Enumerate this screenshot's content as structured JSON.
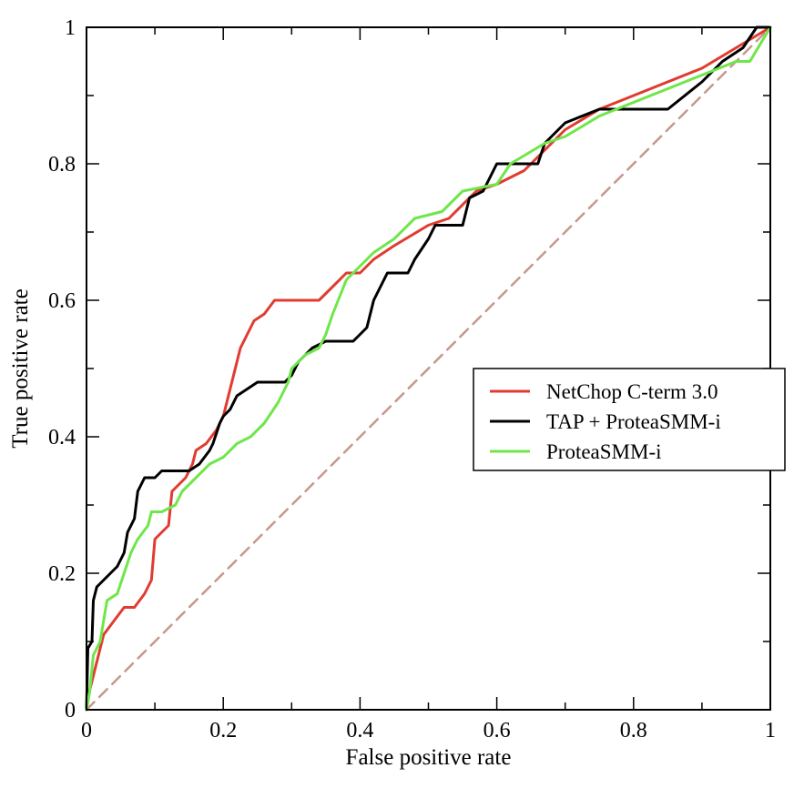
{
  "chart_data": {
    "type": "line",
    "title": "",
    "xlabel": "False positive rate",
    "ylabel": "True positive rate",
    "xlim": [
      0,
      1
    ],
    "ylim": [
      0,
      1
    ],
    "x_ticks": [
      0,
      0.2,
      0.4,
      0.6,
      0.8,
      1
    ],
    "x_tick_labels": [
      "0",
      "0.2",
      "0.4",
      "0.6",
      "0.8",
      "1"
    ],
    "y_ticks": [
      0,
      0.2,
      0.4,
      0.6,
      0.8,
      1
    ],
    "y_tick_labels": [
      "0",
      "0.2",
      "0.4",
      "0.6",
      "0.8",
      "1"
    ],
    "grid": false,
    "legend_position": "right",
    "series": [
      {
        "name": "NetChop C-term 3.0",
        "color": "#e03c31",
        "points": [
          [
            0,
            0
          ],
          [
            0.005,
            0.03
          ],
          [
            0.015,
            0.07
          ],
          [
            0.025,
            0.11
          ],
          [
            0.04,
            0.13
          ],
          [
            0.055,
            0.15
          ],
          [
            0.07,
            0.15
          ],
          [
            0.085,
            0.17
          ],
          [
            0.095,
            0.19
          ],
          [
            0.1,
            0.25
          ],
          [
            0.11,
            0.26
          ],
          [
            0.12,
            0.27
          ],
          [
            0.125,
            0.32
          ],
          [
            0.135,
            0.33
          ],
          [
            0.145,
            0.34
          ],
          [
            0.155,
            0.36
          ],
          [
            0.16,
            0.38
          ],
          [
            0.175,
            0.39
          ],
          [
            0.19,
            0.41
          ],
          [
            0.2,
            0.43
          ],
          [
            0.205,
            0.45
          ],
          [
            0.215,
            0.49
          ],
          [
            0.225,
            0.53
          ],
          [
            0.235,
            0.55
          ],
          [
            0.245,
            0.57
          ],
          [
            0.26,
            0.58
          ],
          [
            0.275,
            0.6
          ],
          [
            0.3,
            0.6
          ],
          [
            0.34,
            0.6
          ],
          [
            0.36,
            0.62
          ],
          [
            0.38,
            0.64
          ],
          [
            0.4,
            0.64
          ],
          [
            0.42,
            0.66
          ],
          [
            0.45,
            0.68
          ],
          [
            0.5,
            0.71
          ],
          [
            0.53,
            0.72
          ],
          [
            0.57,
            0.76
          ],
          [
            0.6,
            0.77
          ],
          [
            0.64,
            0.79
          ],
          [
            0.7,
            0.85
          ],
          [
            0.75,
            0.88
          ],
          [
            0.8,
            0.9
          ],
          [
            0.9,
            0.94
          ],
          [
            1,
            1
          ]
        ]
      },
      {
        "name": "TAP + ProteaSMM-i",
        "color": "#000000",
        "points": [
          [
            0,
            0
          ],
          [
            0.002,
            0.09
          ],
          [
            0.008,
            0.1
          ],
          [
            0.01,
            0.16
          ],
          [
            0.015,
            0.18
          ],
          [
            0.025,
            0.19
          ],
          [
            0.035,
            0.2
          ],
          [
            0.045,
            0.21
          ],
          [
            0.055,
            0.23
          ],
          [
            0.06,
            0.26
          ],
          [
            0.07,
            0.28
          ],
          [
            0.075,
            0.32
          ],
          [
            0.085,
            0.34
          ],
          [
            0.1,
            0.34
          ],
          [
            0.11,
            0.35
          ],
          [
            0.15,
            0.35
          ],
          [
            0.165,
            0.36
          ],
          [
            0.18,
            0.38
          ],
          [
            0.185,
            0.39
          ],
          [
            0.195,
            0.42
          ],
          [
            0.2,
            0.43
          ],
          [
            0.21,
            0.44
          ],
          [
            0.22,
            0.46
          ],
          [
            0.25,
            0.48
          ],
          [
            0.29,
            0.48
          ],
          [
            0.3,
            0.49
          ],
          [
            0.31,
            0.51
          ],
          [
            0.33,
            0.53
          ],
          [
            0.35,
            0.54
          ],
          [
            0.39,
            0.54
          ],
          [
            0.4,
            0.55
          ],
          [
            0.41,
            0.56
          ],
          [
            0.42,
            0.6
          ],
          [
            0.43,
            0.62
          ],
          [
            0.44,
            0.64
          ],
          [
            0.47,
            0.64
          ],
          [
            0.48,
            0.66
          ],
          [
            0.5,
            0.69
          ],
          [
            0.51,
            0.71
          ],
          [
            0.55,
            0.71
          ],
          [
            0.56,
            0.75
          ],
          [
            0.58,
            0.76
          ],
          [
            0.6,
            0.8
          ],
          [
            0.66,
            0.8
          ],
          [
            0.67,
            0.83
          ],
          [
            0.7,
            0.86
          ],
          [
            0.75,
            0.88
          ],
          [
            0.85,
            0.88
          ],
          [
            0.9,
            0.92
          ],
          [
            0.93,
            0.95
          ],
          [
            0.96,
            0.97
          ],
          [
            0.98,
            1
          ],
          [
            1,
            1
          ]
        ]
      },
      {
        "name": "ProteaSMM-i",
        "color": "#6fe64a",
        "points": [
          [
            0,
            0
          ],
          [
            0.005,
            0.03
          ],
          [
            0.01,
            0.08
          ],
          [
            0.02,
            0.1
          ],
          [
            0.03,
            0.16
          ],
          [
            0.045,
            0.17
          ],
          [
            0.055,
            0.2
          ],
          [
            0.065,
            0.23
          ],
          [
            0.075,
            0.25
          ],
          [
            0.09,
            0.27
          ],
          [
            0.095,
            0.29
          ],
          [
            0.11,
            0.29
          ],
          [
            0.13,
            0.3
          ],
          [
            0.14,
            0.32
          ],
          [
            0.16,
            0.34
          ],
          [
            0.18,
            0.36
          ],
          [
            0.2,
            0.37
          ],
          [
            0.22,
            0.39
          ],
          [
            0.24,
            0.4
          ],
          [
            0.26,
            0.42
          ],
          [
            0.28,
            0.45
          ],
          [
            0.295,
            0.48
          ],
          [
            0.3,
            0.5
          ],
          [
            0.32,
            0.52
          ],
          [
            0.34,
            0.53
          ],
          [
            0.35,
            0.55
          ],
          [
            0.36,
            0.58
          ],
          [
            0.38,
            0.63
          ],
          [
            0.4,
            0.65
          ],
          [
            0.42,
            0.67
          ],
          [
            0.45,
            0.69
          ],
          [
            0.48,
            0.72
          ],
          [
            0.52,
            0.73
          ],
          [
            0.55,
            0.76
          ],
          [
            0.6,
            0.77
          ],
          [
            0.62,
            0.8
          ],
          [
            0.67,
            0.83
          ],
          [
            0.7,
            0.84
          ],
          [
            0.75,
            0.87
          ],
          [
            0.8,
            0.89
          ],
          [
            0.85,
            0.91
          ],
          [
            0.9,
            0.93
          ],
          [
            0.95,
            0.95
          ],
          [
            0.97,
            0.95
          ],
          [
            1,
            1
          ]
        ]
      },
      {
        "name": "",
        "color": "#c7978c",
        "dashed": true,
        "points": [
          [
            0,
            0
          ],
          [
            1,
            1
          ]
        ]
      }
    ]
  }
}
